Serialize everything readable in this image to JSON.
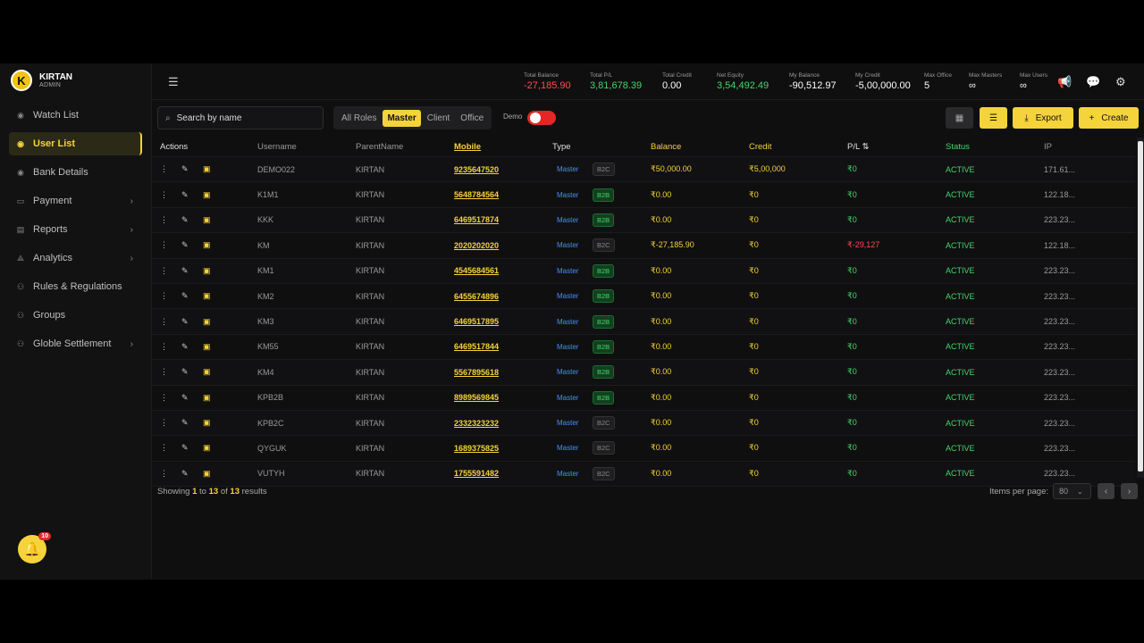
{
  "brand": {
    "initial": "K",
    "name": "KIRTAN",
    "role": "ADMIN"
  },
  "sidebar": {
    "items": [
      {
        "label": "Watch List",
        "icon": "eye-icon",
        "active": false,
        "chevron": false
      },
      {
        "label": "User List",
        "icon": "eye-icon",
        "active": true,
        "chevron": false
      },
      {
        "label": "Bank Details",
        "icon": "eye-icon",
        "active": false,
        "chevron": false
      },
      {
        "label": "Payment",
        "icon": "card-icon",
        "active": false,
        "chevron": true
      },
      {
        "label": "Reports",
        "icon": "document-icon",
        "active": false,
        "chevron": true
      },
      {
        "label": "Analytics",
        "icon": "share-icon",
        "active": false,
        "chevron": true
      },
      {
        "label": "Rules & Regulations",
        "icon": "users-icon",
        "active": false,
        "chevron": false
      },
      {
        "label": "Groups",
        "icon": "users-icon",
        "active": false,
        "chevron": false
      },
      {
        "label": "Globle Settlement",
        "icon": "users-icon",
        "active": false,
        "chevron": true
      }
    ],
    "notifications": "10"
  },
  "header": {
    "stats": [
      {
        "label": "Total Balance",
        "value": "-27,185.90",
        "color": "#ff4d4f"
      },
      {
        "label": "Total P/L",
        "value": "3,81,678.39",
        "color": "#43d66a"
      },
      {
        "label": "Total Credit",
        "value": "0.00",
        "color": "#ffffff"
      },
      {
        "label": "Net Equity",
        "value": "3,54,492.49",
        "color": "#43d66a"
      },
      {
        "label": "My Balance",
        "value": "-90,512.97",
        "color": "#ffffff"
      },
      {
        "label": "My Credit",
        "value": "-5,00,000.00",
        "color": "#ffffff"
      },
      {
        "label": "Max Office",
        "value": "5",
        "color": "#ffffff"
      },
      {
        "label": "Max Masters",
        "value": "∞",
        "color": "#ffffff"
      },
      {
        "label": "Max Users",
        "value": "∞",
        "color": "#ffffff"
      }
    ]
  },
  "toolbar": {
    "search_placeholder": "Search by name",
    "roles": [
      "All Roles",
      "Master",
      "Client",
      "Office"
    ],
    "active_role": "Master",
    "demo_label": "Demo",
    "export_label": "Export",
    "create_label": "Create"
  },
  "table": {
    "columns": [
      "Actions",
      "Username",
      "ParentName",
      "Mobile",
      "Type",
      "Balance",
      "Credit",
      "P/L ⇅",
      "Status",
      "IP"
    ],
    "rows": [
      {
        "username": "DEMO022",
        "parent": "KIRTAN",
        "mobile": "9235647520",
        "type": "Master",
        "btype": "B2C",
        "balance": "₹50,000.00",
        "credit": "₹5,00,000",
        "pl": "₹0",
        "pl_color": "#43d66a",
        "status": "ACTIVE",
        "ip": "171.61..."
      },
      {
        "username": "K1M1",
        "parent": "KIRTAN",
        "mobile": "5648784564",
        "type": "Master",
        "btype": "B2B",
        "balance": "₹0.00",
        "credit": "₹0",
        "pl": "₹0",
        "pl_color": "#43d66a",
        "status": "ACTIVE",
        "ip": "122.18..."
      },
      {
        "username": "KKK",
        "parent": "KIRTAN",
        "mobile": "6469517874",
        "type": "Master",
        "btype": "B2B",
        "balance": "₹0.00",
        "credit": "₹0",
        "pl": "₹0",
        "pl_color": "#43d66a",
        "status": "ACTIVE",
        "ip": "223.23..."
      },
      {
        "username": "KM",
        "parent": "KIRTAN",
        "mobile": "2020202020",
        "type": "Master",
        "btype": "B2C",
        "balance": "₹-27,185.90",
        "credit": "₹0",
        "pl": "₹-29,127",
        "pl_color": "#ff4d4f",
        "status": "ACTIVE",
        "ip": "122.18..."
      },
      {
        "username": "KM1",
        "parent": "KIRTAN",
        "mobile": "4545684561",
        "type": "Master",
        "btype": "B2B",
        "balance": "₹0.00",
        "credit": "₹0",
        "pl": "₹0",
        "pl_color": "#43d66a",
        "status": "ACTIVE",
        "ip": "223.23..."
      },
      {
        "username": "KM2",
        "parent": "KIRTAN",
        "mobile": "6455674896",
        "type": "Master",
        "btype": "B2B",
        "balance": "₹0.00",
        "credit": "₹0",
        "pl": "₹0",
        "pl_color": "#43d66a",
        "status": "ACTIVE",
        "ip": "223.23..."
      },
      {
        "username": "KM3",
        "parent": "KIRTAN",
        "mobile": "6469517895",
        "type": "Master",
        "btype": "B2B",
        "balance": "₹0.00",
        "credit": "₹0",
        "pl": "₹0",
        "pl_color": "#43d66a",
        "status": "ACTIVE",
        "ip": "223.23..."
      },
      {
        "username": "KM55",
        "parent": "KIRTAN",
        "mobile": "6469517844",
        "type": "Master",
        "btype": "B2B",
        "balance": "₹0.00",
        "credit": "₹0",
        "pl": "₹0",
        "pl_color": "#43d66a",
        "status": "ACTIVE",
        "ip": "223.23..."
      },
      {
        "username": "KM4",
        "parent": "KIRTAN",
        "mobile": "5567895618",
        "type": "Master",
        "btype": "B2B",
        "balance": "₹0.00",
        "credit": "₹0",
        "pl": "₹0",
        "pl_color": "#43d66a",
        "status": "ACTIVE",
        "ip": "223.23..."
      },
      {
        "username": "KPB2B",
        "parent": "KIRTAN",
        "mobile": "8989569845",
        "type": "Master",
        "btype": "B2B",
        "balance": "₹0.00",
        "credit": "₹0",
        "pl": "₹0",
        "pl_color": "#43d66a",
        "status": "ACTIVE",
        "ip": "223.23..."
      },
      {
        "username": "KPB2C",
        "parent": "KIRTAN",
        "mobile": "2332323232",
        "type": "Master",
        "btype": "B2C",
        "balance": "₹0.00",
        "credit": "₹0",
        "pl": "₹0",
        "pl_color": "#43d66a",
        "status": "ACTIVE",
        "ip": "223.23..."
      },
      {
        "username": "QYGUK",
        "parent": "KIRTAN",
        "mobile": "1689375825",
        "type": "Master",
        "btype": "B2C",
        "balance": "₹0.00",
        "credit": "₹0",
        "pl": "₹0",
        "pl_color": "#43d66a",
        "status": "ACTIVE",
        "ip": "223.23..."
      },
      {
        "username": "VUTYH",
        "parent": "KIRTAN",
        "mobile": "1755591482",
        "type": "Master",
        "btype": "B2C",
        "balance": "₹0.00",
        "credit": "₹0",
        "pl": "₹0",
        "pl_color": "#43d66a",
        "status": "ACTIVE",
        "ip": "223.23..."
      }
    ]
  },
  "footer": {
    "showing": "Showing",
    "from": "1",
    "to_word": "to",
    "to": "13",
    "of_word": "of",
    "total": "13",
    "results": "results",
    "items_per_page_label": "Items per page:",
    "items_per_page": "80"
  }
}
